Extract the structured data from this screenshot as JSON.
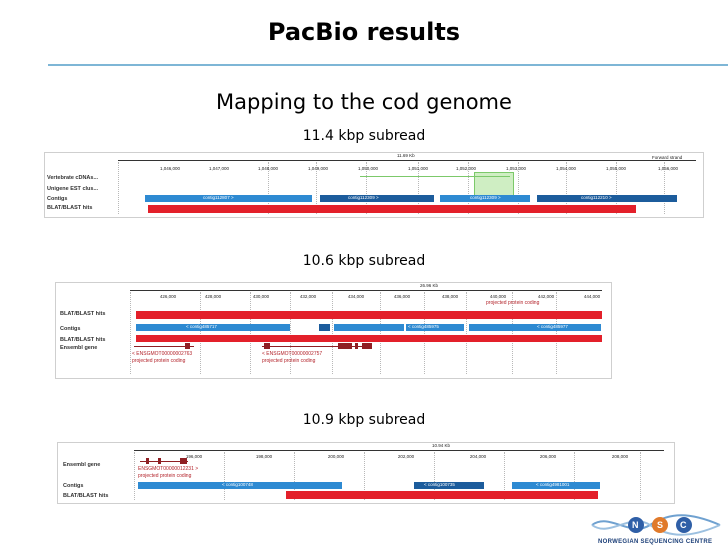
{
  "slide": {
    "title": "PacBio results",
    "subtitle": "Mapping to the cod genome"
  },
  "panels": [
    {
      "heading": "11.4 kbp subread",
      "scale_label": "11.69 Kb",
      "strand_label": "Forward strand",
      "ticks": [
        "1,046,000",
        "1,047,000",
        "1,048,000",
        "1,049,000",
        "1,050,000",
        "1,051,000",
        "1,052,000",
        "1,053,000",
        "1,054,000",
        "1,055,000",
        "1,056,000"
      ],
      "tracks": [
        "Vertebrate cDNAs...",
        "Unigene EST clus...",
        "Contigs",
        "BLAT/BLAST hits"
      ],
      "contigs": [
        "contig112807 >",
        "contig112309 >",
        "contig112309 >",
        "contig112210 >"
      ]
    },
    {
      "heading": "10.6 kbp subread",
      "scale_label": "26.96 Kb",
      "ticks": [
        "426,000",
        "428,000",
        "430,000",
        "432,000",
        "434,000",
        "436,000",
        "438,000",
        "440,000",
        "442,000",
        "444,000"
      ],
      "tracks": [
        "BLAT/BLAST hits",
        "Contigs",
        "BLAT/BLAST hits",
        "Ensembl gene"
      ],
      "contigs": [
        "< contig485717",
        "< contig485975",
        "< contig485977"
      ],
      "projected_top": "projected protein coding",
      "ensembl": [
        {
          "id": "< ENSGMOT00000002763",
          "desc": "projected protein coding"
        },
        {
          "id": "< ENSGMOT00000002757",
          "desc": "projected protein coding"
        }
      ]
    },
    {
      "heading": "10.9 kbp subread",
      "scale_label": "10.94 Kb",
      "ticks": [
        "196,000",
        "198,000",
        "200,000",
        "202,000",
        "204,000",
        "206,000",
        "208,000"
      ],
      "tracks": [
        "Ensembl gene",
        "Contigs",
        "BLAT/BLAST hits"
      ],
      "contigs": [
        "< contig100748",
        "< contig100735",
        "< contig4981001"
      ],
      "ensembl": [
        {
          "id": "ENSGMOT00000012231 >",
          "desc": "projected protein coding"
        }
      ]
    }
  ],
  "logo": {
    "letters": [
      "N",
      "S",
      "C"
    ],
    "text": "NORWEGIAN SEQUENCING CENTRE",
    "colors": {
      "n": "#2f5fa7",
      "s": "#e07a2b",
      "c": "#2f5fa7",
      "helix": "#6fa1d0"
    }
  }
}
